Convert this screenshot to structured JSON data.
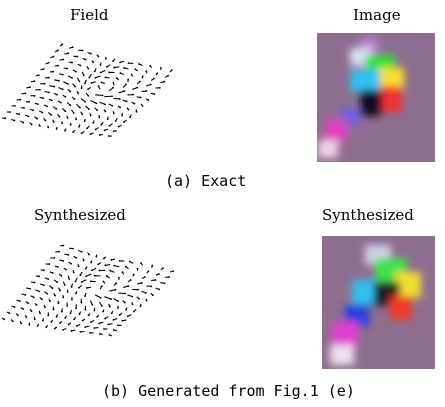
{
  "panel_a": {
    "field_title": "Field",
    "image_title": "Image",
    "caption": "(a) Exact"
  },
  "panel_b": {
    "field_title": "Synthesized",
    "image_title": "Synthesized",
    "caption": "(b) Generated from Fig.1 (e)"
  },
  "colors": {
    "background": "#ffffff",
    "arrow": "#000000",
    "image_background": "#8e6e8e"
  }
}
